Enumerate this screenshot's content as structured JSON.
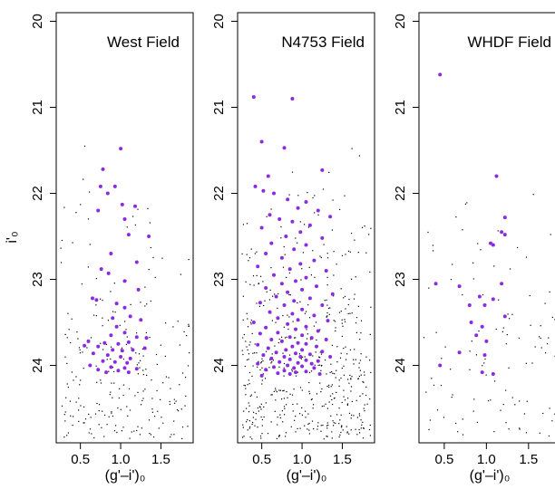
{
  "figure": {
    "ylabel": "i'₀",
    "colors": {
      "highlight": "#8a2be2",
      "background_points": "#000000",
      "axes": "#000000"
    }
  },
  "chart_data": [
    {
      "type": "scatter",
      "title": "West Field",
      "xlabel": "(g'–i')₀",
      "ylabel": "i'₀",
      "xlim": [
        0.2,
        1.9
      ],
      "ylim": [
        24.9,
        19.9
      ],
      "y_inverted": true,
      "xticks": [
        "0.5",
        "1.0",
        "1.5"
      ],
      "yticks": [
        "20",
        "21",
        "22",
        "23",
        "24"
      ],
      "grid": false,
      "series": [
        {
          "role": "highlight",
          "color": "#8a2be2",
          "points": [
            [
              1.0,
              21.48
            ],
            [
              0.78,
              21.72
            ],
            [
              0.75,
              21.92
            ],
            [
              0.93,
              21.92
            ],
            [
              0.84,
              22.0
            ],
            [
              1.02,
              22.13
            ],
            [
              1.18,
              22.15
            ],
            [
              0.72,
              22.2
            ],
            [
              1.05,
              22.3
            ],
            [
              1.1,
              22.48
            ],
            [
              1.35,
              22.5
            ],
            [
              0.88,
              22.7
            ],
            [
              1.2,
              22.8
            ],
            [
              0.76,
              22.88
            ],
            [
              0.85,
              22.93
            ],
            [
              1.05,
              23.02
            ],
            [
              1.22,
              23.12
            ],
            [
              0.65,
              23.22
            ],
            [
              0.7,
              23.24
            ],
            [
              0.95,
              23.28
            ],
            [
              1.05,
              23.33
            ],
            [
              0.9,
              23.45
            ],
            [
              1.12,
              23.43
            ],
            [
              1.25,
              23.47
            ],
            [
              0.95,
              23.55
            ],
            [
              1.05,
              23.62
            ],
            [
              0.88,
              23.65
            ],
            [
              1.2,
              23.67
            ],
            [
              1.32,
              23.68
            ],
            [
              0.6,
              23.72
            ],
            [
              0.8,
              23.74
            ],
            [
              0.97,
              23.75
            ],
            [
              1.1,
              23.73
            ],
            [
              0.55,
              23.77
            ],
            [
              0.72,
              23.78
            ],
            [
              0.9,
              23.82
            ],
            [
              1.02,
              23.83
            ],
            [
              1.15,
              23.82
            ],
            [
              1.3,
              23.8
            ],
            [
              0.66,
              23.86
            ],
            [
              0.84,
              23.88
            ],
            [
              1.0,
              23.9
            ],
            [
              1.12,
              23.92
            ],
            [
              0.78,
              23.95
            ],
            [
              0.93,
              23.96
            ],
            [
              1.08,
              23.97
            ],
            [
              0.62,
              24.0
            ],
            [
              0.88,
              24.02
            ],
            [
              1.05,
              24.03
            ],
            [
              0.72,
              24.05
            ],
            [
              0.97,
              24.06
            ],
            [
              1.2,
              24.04
            ],
            [
              0.82,
              24.08
            ],
            [
              1.1,
              24.08
            ]
          ]
        }
      ]
    },
    {
      "type": "scatter",
      "title": "N4753 Field",
      "xlabel": "(g'–i')₀",
      "ylabel": "i'₀",
      "xlim": [
        0.2,
        1.9
      ],
      "ylim": [
        24.9,
        19.9
      ],
      "y_inverted": true,
      "xticks": [
        "0.5",
        "1.0",
        "1.5"
      ],
      "yticks": [
        "20",
        "21",
        "22",
        "23",
        "24"
      ],
      "grid": false,
      "series": [
        {
          "role": "highlight",
          "color": "#8a2be2",
          "points": [
            [
              0.4,
              20.88
            ],
            [
              0.88,
              20.9
            ],
            [
              0.5,
              21.4
            ],
            [
              0.78,
              21.47
            ],
            [
              1.25,
              21.73
            ],
            [
              0.58,
              21.8
            ],
            [
              0.42,
              21.92
            ],
            [
              0.52,
              21.97
            ],
            [
              0.65,
              22.0
            ],
            [
              0.82,
              22.07
            ],
            [
              1.05,
              22.1
            ],
            [
              0.95,
              22.17
            ],
            [
              1.2,
              22.2
            ],
            [
              0.6,
              22.25
            ],
            [
              0.72,
              22.3
            ],
            [
              1.35,
              22.27
            ],
            [
              0.88,
              22.33
            ],
            [
              1.1,
              22.37
            ],
            [
              0.5,
              22.4
            ],
            [
              0.98,
              22.45
            ],
            [
              0.8,
              22.5
            ],
            [
              1.25,
              22.52
            ],
            [
              0.62,
              22.58
            ],
            [
              1.05,
              22.6
            ],
            [
              0.9,
              22.65
            ],
            [
              0.55,
              22.7
            ],
            [
              0.75,
              22.75
            ],
            [
              1.15,
              22.78
            ],
            [
              0.98,
              22.82
            ],
            [
              0.45,
              22.85
            ],
            [
              0.85,
              22.88
            ],
            [
              1.3,
              22.9
            ],
            [
              0.65,
              22.95
            ],
            [
              1.05,
              22.98
            ],
            [
              0.92,
              23.02
            ],
            [
              0.75,
              23.05
            ],
            [
              1.18,
              23.08
            ],
            [
              0.55,
              23.1
            ],
            [
              1.0,
              23.12
            ],
            [
              0.82,
              23.15
            ],
            [
              1.38,
              23.17
            ],
            [
              0.68,
              23.2
            ],
            [
              1.1,
              23.22
            ],
            [
              0.9,
              23.25
            ],
            [
              0.48,
              23.27
            ],
            [
              0.78,
              23.3
            ],
            [
              1.25,
              23.3
            ],
            [
              1.0,
              23.35
            ],
            [
              0.6,
              23.38
            ],
            [
              0.88,
              23.4
            ],
            [
              1.15,
              23.42
            ],
            [
              0.7,
              23.45
            ],
            [
              0.95,
              23.47
            ],
            [
              1.32,
              23.48
            ],
            [
              0.4,
              23.5
            ],
            [
              0.82,
              23.52
            ],
            [
              1.05,
              23.55
            ],
            [
              0.55,
              23.56
            ],
            [
              0.92,
              23.58
            ],
            [
              1.2,
              23.6
            ],
            [
              0.7,
              23.62
            ],
            [
              0.48,
              23.63
            ],
            [
              1.0,
              23.65
            ],
            [
              0.85,
              23.67
            ],
            [
              1.12,
              23.68
            ],
            [
              0.62,
              23.7
            ],
            [
              1.3,
              23.7
            ],
            [
              0.75,
              23.72
            ],
            [
              0.95,
              23.74
            ],
            [
              1.05,
              23.75
            ],
            [
              0.45,
              23.76
            ],
            [
              0.88,
              23.78
            ],
            [
              1.18,
              23.78
            ],
            [
              0.58,
              23.8
            ],
            [
              0.8,
              23.82
            ],
            [
              1.0,
              23.82
            ],
            [
              1.25,
              23.84
            ],
            [
              0.68,
              23.85
            ],
            [
              0.92,
              23.86
            ],
            [
              1.1,
              23.87
            ],
            [
              0.52,
              23.88
            ],
            [
              0.78,
              23.9
            ],
            [
              0.98,
              23.9
            ],
            [
              1.35,
              23.9
            ],
            [
              0.62,
              23.92
            ],
            [
              0.85,
              23.93
            ],
            [
              1.05,
              23.94
            ],
            [
              1.2,
              23.95
            ],
            [
              0.72,
              23.96
            ],
            [
              0.95,
              23.97
            ],
            [
              0.45,
              23.98
            ],
            [
              1.12,
              23.98
            ],
            [
              0.82,
              24.0
            ],
            [
              1.0,
              24.01
            ],
            [
              0.65,
              24.02
            ],
            [
              0.9,
              24.03
            ],
            [
              1.15,
              24.03
            ],
            [
              0.55,
              24.05
            ],
            [
              0.78,
              24.06
            ],
            [
              1.05,
              24.07
            ],
            [
              0.92,
              24.08
            ],
            [
              0.7,
              24.09
            ],
            [
              0.85,
              24.1
            ],
            [
              1.22,
              24.1
            ],
            [
              0.5,
              24.12
            ]
          ]
        }
      ]
    },
    {
      "type": "scatter",
      "title": "WHDF Field",
      "xlabel": "(g'–i')₀",
      "ylabel": "i'₀",
      "xlim": [
        0.2,
        1.9
      ],
      "ylim": [
        24.9,
        19.9
      ],
      "y_inverted": true,
      "xticks": [
        "0.5",
        "1.0",
        "1.5"
      ],
      "yticks": [
        "20",
        "21",
        "22",
        "23",
        "24"
      ],
      "grid": false,
      "series": [
        {
          "role": "highlight",
          "color": "#8a2be2",
          "points": [
            [
              0.45,
              20.62
            ],
            [
              1.12,
              21.8
            ],
            [
              1.22,
              22.28
            ],
            [
              1.18,
              22.45
            ],
            [
              1.22,
              22.48
            ],
            [
              1.05,
              22.58
            ],
            [
              1.08,
              22.6
            ],
            [
              0.4,
              23.05
            ],
            [
              0.68,
              23.08
            ],
            [
              1.18,
              23.05
            ],
            [
              0.92,
              23.2
            ],
            [
              1.08,
              23.23
            ],
            [
              0.8,
              23.3
            ],
            [
              0.98,
              23.3
            ],
            [
              1.22,
              23.43
            ],
            [
              0.82,
              23.5
            ],
            [
              0.95,
              23.55
            ],
            [
              0.88,
              23.65
            ],
            [
              1.0,
              23.72
            ],
            [
              0.68,
              23.85
            ],
            [
              0.98,
              23.88
            ],
            [
              0.45,
              24.0
            ],
            [
              0.95,
              24.08
            ],
            [
              1.08,
              24.1
            ]
          ]
        }
      ]
    }
  ]
}
